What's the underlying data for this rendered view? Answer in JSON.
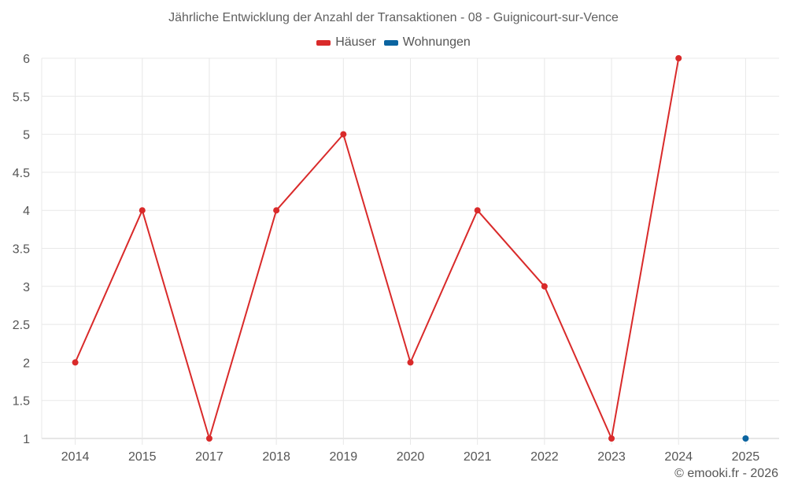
{
  "chart_data": {
    "type": "line",
    "title": "Jährliche Entwicklung der Anzahl der Transaktionen - 08 - Guignicourt-sur-Vence",
    "categories": [
      "2014",
      "2015",
      "2017",
      "2018",
      "2019",
      "2020",
      "2021",
      "2022",
      "2023",
      "2024",
      "2025"
    ],
    "series": [
      {
        "name": "Häuser",
        "color": "#d92a2a",
        "values": [
          2,
          4,
          1,
          4,
          5,
          2,
          4,
          3,
          1,
          6,
          null
        ]
      },
      {
        "name": "Wohnungen",
        "color": "#0b64a0",
        "values": [
          null,
          null,
          null,
          null,
          null,
          null,
          null,
          null,
          null,
          null,
          1
        ]
      }
    ],
    "xlabel": "",
    "ylabel": "",
    "ylim": [
      1,
      6
    ],
    "yticks": [
      "1",
      "1.5",
      "2",
      "2.5",
      "3",
      "3.5",
      "4",
      "4.5",
      "5",
      "5.5",
      "6"
    ],
    "grid": true,
    "legend_position": "top"
  },
  "legend": {
    "items": [
      {
        "label": "Häuser",
        "color": "#d92a2a"
      },
      {
        "label": "Wohnungen",
        "color": "#0b64a0"
      }
    ]
  },
  "credit": "© emooki.fr - 2026"
}
